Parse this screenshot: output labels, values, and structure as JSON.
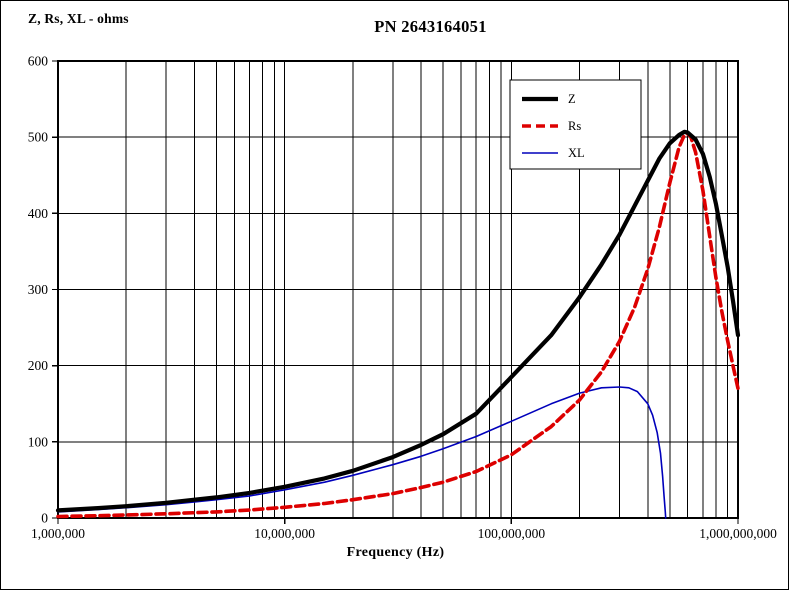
{
  "chart_data": {
    "type": "line",
    "title": "PN 2643164051",
    "xlabel": "Frequency (Hz)",
    "ylabel": "Z, Rs, XL - ohms",
    "x_scale": "log",
    "xlim": [
      1000000,
      1000000000
    ],
    "ylim": [
      0,
      600
    ],
    "y_ticks": [
      0,
      100,
      200,
      300,
      400,
      500,
      600
    ],
    "x_tick_values": [
      1000000,
      10000000,
      100000000,
      1000000000
    ],
    "x_tick_labels": [
      "1,000,000",
      "10,000,000",
      "100,000,000",
      "1,000,000,000"
    ],
    "grid": "major horizontal + log minor vertical, black",
    "legend_position": "upper right inside",
    "series": [
      {
        "name": "Z",
        "color": "#000000",
        "width": 4.2,
        "dash": "",
        "x_mhz": [
          1,
          1.5,
          2,
          3,
          4,
          5,
          7,
          10,
          15,
          20,
          30,
          40,
          50,
          70,
          100,
          150,
          200,
          250,
          300,
          350,
          400,
          450,
          500,
          550,
          580,
          600,
          650,
          700,
          750,
          800,
          850,
          900,
          950,
          1000
        ],
        "values": [
          10,
          13,
          15.5,
          20,
          24,
          27,
          33,
          41,
          52,
          62,
          80,
          96,
          110,
          137,
          185,
          240,
          290,
          333,
          372,
          410,
          443,
          472,
          492,
          503,
          507,
          506,
          497,
          478,
          448,
          412,
          370,
          330,
          285,
          240
        ]
      },
      {
        "name": "Rs",
        "color": "#dd0000",
        "width": 3.6,
        "dash": "9 5",
        "x_mhz": [
          1,
          1.5,
          2,
          3,
          4,
          5,
          7,
          10,
          15,
          20,
          30,
          40,
          50,
          70,
          100,
          150,
          200,
          250,
          300,
          350,
          400,
          450,
          500,
          550,
          580,
          600,
          620,
          650,
          700,
          750,
          800,
          850,
          900,
          950,
          1000
        ],
        "values": [
          2,
          3,
          4,
          5.5,
          7,
          8,
          10.5,
          14,
          19,
          24,
          32,
          40,
          47,
          61,
          83,
          120,
          155,
          192,
          232,
          277,
          327,
          382,
          440,
          487,
          503,
          505,
          500,
          480,
          430,
          370,
          315,
          270,
          233,
          200,
          170
        ]
      },
      {
        "name": "XL",
        "color": "#0000bb",
        "width": 1.6,
        "dash": "",
        "x_mhz": [
          1,
          1.5,
          2,
          3,
          4,
          5,
          7,
          10,
          15,
          20,
          30,
          40,
          50,
          70,
          100,
          150,
          200,
          250,
          300,
          330,
          360,
          400,
          420,
          440,
          455,
          465,
          472,
          478,
          480
        ],
        "values": [
          8,
          11,
          13.5,
          17.5,
          21,
          24,
          29,
          37,
          47,
          56,
          70,
          81,
          91,
          107,
          127,
          150,
          164,
          171,
          172,
          171,
          166,
          150,
          135,
          112,
          85,
          55,
          28,
          8,
          0
        ]
      }
    ]
  }
}
